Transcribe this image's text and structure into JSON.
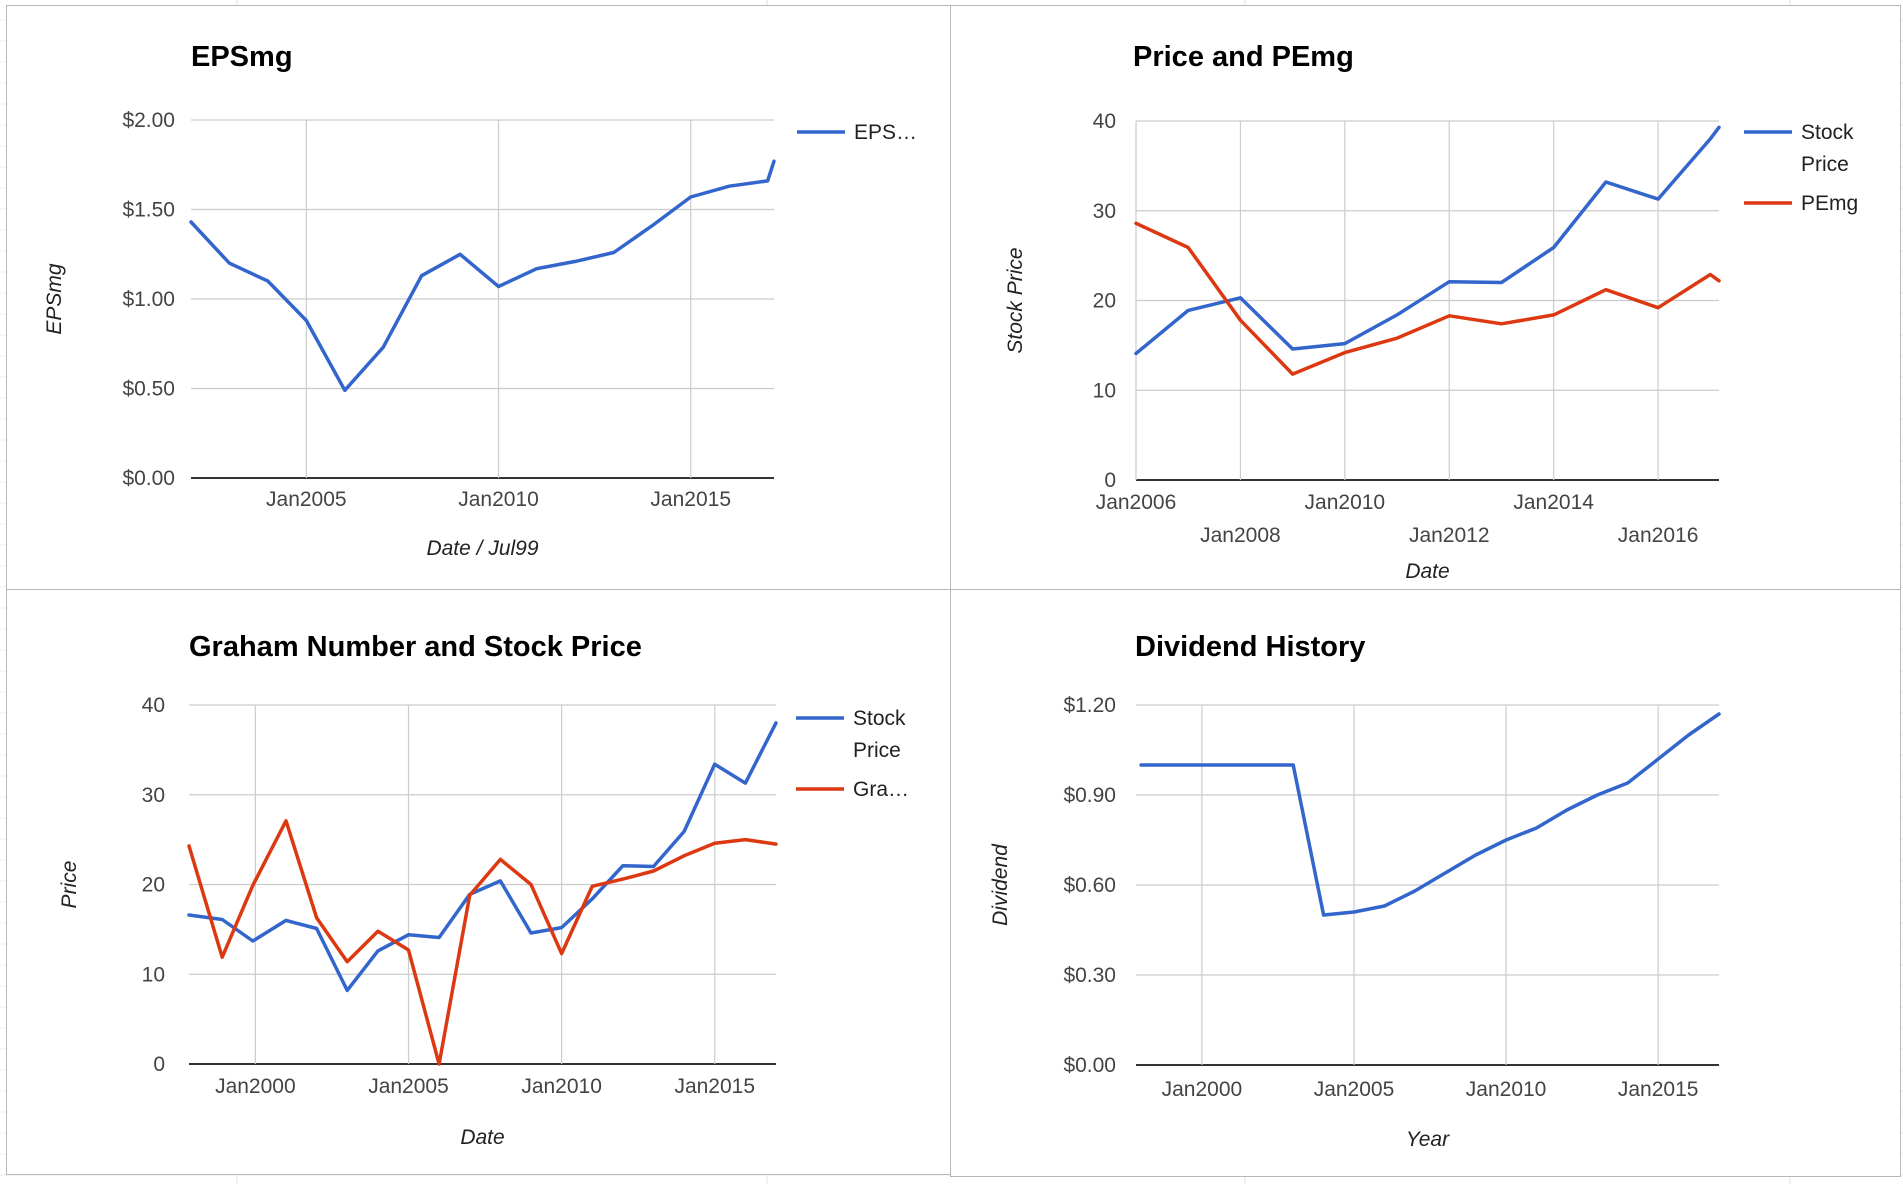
{
  "chart_data": [
    {
      "id": "eps",
      "type": "line",
      "title": "EPSmg",
      "xlabel": "Date / Jul99",
      "ylabel": "EPSmg",
      "x_start": "2002-01",
      "x_end": "2017-03",
      "x_ticks": [
        {
          "date": "2005-01",
          "label": "Jan2005"
        },
        {
          "date": "2010-01",
          "label": "Jan2010"
        },
        {
          "date": "2015-01",
          "label": "Jan2015"
        }
      ],
      "ylim": [
        0,
        2
      ],
      "y_ticks": [
        {
          "value": 0,
          "label": "$0.00"
        },
        {
          "value": 0.5,
          "label": "$0.50"
        },
        {
          "value": 1,
          "label": "$1.00"
        },
        {
          "value": 1.5,
          "label": "$1.50"
        },
        {
          "value": 2,
          "label": "$2.00"
        }
      ],
      "grid": true,
      "legend_position": "right",
      "series": [
        {
          "name": "EPS…",
          "color": "#3366cc",
          "points": [
            [
              "2002-01",
              1.43
            ],
            [
              "2003-01",
              1.2
            ],
            [
              "2004-01",
              1.1
            ],
            [
              "2005-01",
              0.88
            ],
            [
              "2006-01",
              0.49
            ],
            [
              "2007-01",
              0.73
            ],
            [
              "2008-01",
              1.13
            ],
            [
              "2009-01",
              1.25
            ],
            [
              "2010-01",
              1.07
            ],
            [
              "2011-01",
              1.17
            ],
            [
              "2012-01",
              1.21
            ],
            [
              "2013-01",
              1.26
            ],
            [
              "2014-01",
              1.41
            ],
            [
              "2015-01",
              1.57
            ],
            [
              "2016-01",
              1.63
            ],
            [
              "2017-01",
              1.66
            ],
            [
              "2017-03",
              1.77
            ]
          ]
        }
      ]
    },
    {
      "id": "price-pe",
      "type": "line",
      "title": "Price and PEmg",
      "xlabel": "Date",
      "ylabel": "Stock Price",
      "x_start": "2006-01",
      "x_end": "2017-03",
      "x_ticks": [
        {
          "date": "2006-01",
          "label": "Jan2006",
          "row": 0
        },
        {
          "date": "2008-01",
          "label": "Jan2008",
          "row": 1
        },
        {
          "date": "2010-01",
          "label": "Jan2010",
          "row": 0
        },
        {
          "date": "2012-01",
          "label": "Jan2012",
          "row": 1
        },
        {
          "date": "2014-01",
          "label": "Jan2014",
          "row": 0
        },
        {
          "date": "2016-01",
          "label": "Jan2016",
          "row": 1
        }
      ],
      "ylim": [
        0,
        40
      ],
      "y_ticks": [
        {
          "value": 0,
          "label": "0"
        },
        {
          "value": 10,
          "label": "10"
        },
        {
          "value": 20,
          "label": "20"
        },
        {
          "value": 30,
          "label": "30"
        },
        {
          "value": 40,
          "label": "40"
        }
      ],
      "grid": true,
      "legend_position": "right",
      "series": [
        {
          "name": "Stock Price",
          "color": "#3366cc",
          "points": [
            [
              "2006-01",
              14.1
            ],
            [
              "2007-01",
              18.9
            ],
            [
              "2008-01",
              20.3
            ],
            [
              "2009-01",
              14.6
            ],
            [
              "2010-01",
              15.2
            ],
            [
              "2011-01",
              18.4
            ],
            [
              "2012-01",
              22.1
            ],
            [
              "2013-01",
              22.0
            ],
            [
              "2014-01",
              25.9
            ],
            [
              "2015-01",
              33.2
            ],
            [
              "2016-01",
              31.3
            ],
            [
              "2017-01",
              38.0
            ],
            [
              "2017-03",
              39.3
            ]
          ]
        },
        {
          "name": "PEmg",
          "color": "#dc3912",
          "points": [
            [
              "2006-01",
              28.6
            ],
            [
              "2007-01",
              25.9
            ],
            [
              "2008-01",
              17.8
            ],
            [
              "2009-01",
              11.8
            ],
            [
              "2010-01",
              14.2
            ],
            [
              "2011-01",
              15.8
            ],
            [
              "2012-01",
              18.3
            ],
            [
              "2013-01",
              17.4
            ],
            [
              "2014-01",
              18.4
            ],
            [
              "2015-01",
              21.2
            ],
            [
              "2016-01",
              19.2
            ],
            [
              "2017-01",
              22.9
            ],
            [
              "2017-03",
              22.2
            ]
          ]
        }
      ]
    },
    {
      "id": "graham",
      "type": "line",
      "title": "Graham Number and Stock Price",
      "xlabel": "Date",
      "ylabel": "Price",
      "x_start": "1997-11",
      "x_end": "2017-01",
      "x_ticks": [
        {
          "date": "2000-01",
          "label": "Jan2000"
        },
        {
          "date": "2005-01",
          "label": "Jan2005"
        },
        {
          "date": "2010-01",
          "label": "Jan2010"
        },
        {
          "date": "2015-01",
          "label": "Jan2015"
        }
      ],
      "ylim": [
        0,
        40
      ],
      "y_ticks": [
        {
          "value": 0,
          "label": "0"
        },
        {
          "value": 10,
          "label": "10"
        },
        {
          "value": 20,
          "label": "20"
        },
        {
          "value": 30,
          "label": "30"
        },
        {
          "value": 40,
          "label": "40"
        }
      ],
      "grid": true,
      "legend_position": "right",
      "series": [
        {
          "name": "Stock Price",
          "color": "#3366cc",
          "points": [
            [
              "1997-11",
              16.6
            ],
            [
              "1998-12",
              16.1
            ],
            [
              "1999-12",
              13.7
            ],
            [
              "2001-01",
              16.0
            ],
            [
              "2002-01",
              15.1
            ],
            [
              "2003-01",
              8.2
            ],
            [
              "2004-01",
              12.6
            ],
            [
              "2005-01",
              14.4
            ],
            [
              "2006-01",
              14.1
            ],
            [
              "2007-01",
              18.9
            ],
            [
              "2008-01",
              20.4
            ],
            [
              "2009-01",
              14.6
            ],
            [
              "2010-01",
              15.2
            ],
            [
              "2011-01",
              18.4
            ],
            [
              "2012-01",
              22.1
            ],
            [
              "2013-01",
              22.0
            ],
            [
              "2014-01",
              25.9
            ],
            [
              "2015-01",
              33.4
            ],
            [
              "2016-01",
              31.3
            ],
            [
              "2017-01",
              38.0
            ]
          ]
        },
        {
          "name": "Gra…",
          "color": "#dc3912",
          "points": [
            [
              "1997-11",
              24.3
            ],
            [
              "1998-12",
              11.9
            ],
            [
              "1999-12",
              19.9
            ],
            [
              "2001-01",
              27.1
            ],
            [
              "2002-01",
              16.3
            ],
            [
              "2003-01",
              11.4
            ],
            [
              "2004-01",
              14.8
            ],
            [
              "2005-01",
              12.7
            ],
            [
              "2006-01",
              0.0
            ],
            [
              "2007-01",
              18.8
            ],
            [
              "2008-01",
              22.8
            ],
            [
              "2009-01",
              20.0
            ],
            [
              "2010-01",
              12.3
            ],
            [
              "2011-01",
              19.8
            ],
            [
              "2012-01",
              20.6
            ],
            [
              "2013-01",
              21.5
            ],
            [
              "2014-01",
              23.2
            ],
            [
              "2015-01",
              24.6
            ],
            [
              "2016-01",
              25.0
            ],
            [
              "2017-01",
              24.5
            ]
          ]
        }
      ]
    },
    {
      "id": "dividend",
      "type": "line",
      "title": "Dividend History",
      "xlabel": "Year",
      "ylabel": "Dividend",
      "x_start": "1997-11",
      "x_end": "2017-01",
      "x_ticks": [
        {
          "date": "2000-01",
          "label": "Jan2000"
        },
        {
          "date": "2005-01",
          "label": "Jan2005"
        },
        {
          "date": "2010-01",
          "label": "Jan2010"
        },
        {
          "date": "2015-01",
          "label": "Jan2015"
        }
      ],
      "ylim": [
        0,
        1.2
      ],
      "y_ticks": [
        {
          "value": 0,
          "label": "$0.00"
        },
        {
          "value": 0.3,
          "label": "$0.30"
        },
        {
          "value": 0.6,
          "label": "$0.60"
        },
        {
          "value": 0.9,
          "label": "$0.90"
        },
        {
          "value": 1.2,
          "label": "$1.20"
        }
      ],
      "grid": true,
      "legend_position": "none",
      "series": [
        {
          "name": "",
          "color": "#3366cc",
          "points": [
            [
              "1998-01",
              1.0
            ],
            [
              "1999-01",
              1.0
            ],
            [
              "2000-01",
              1.0
            ],
            [
              "2001-01",
              1.0
            ],
            [
              "2002-01",
              1.0
            ],
            [
              "2003-01",
              1.0
            ],
            [
              "2004-01",
              0.5
            ],
            [
              "2005-01",
              0.51
            ],
            [
              "2006-01",
              0.53
            ],
            [
              "2007-01",
              0.58
            ],
            [
              "2008-01",
              0.64
            ],
            [
              "2009-01",
              0.7
            ],
            [
              "2010-01",
              0.75
            ],
            [
              "2011-01",
              0.79
            ],
            [
              "2012-01",
              0.85
            ],
            [
              "2013-01",
              0.9
            ],
            [
              "2014-01",
              0.94
            ],
            [
              "2015-01",
              1.02
            ],
            [
              "2016-01",
              1.1
            ],
            [
              "2017-01",
              1.17
            ]
          ]
        }
      ]
    }
  ]
}
